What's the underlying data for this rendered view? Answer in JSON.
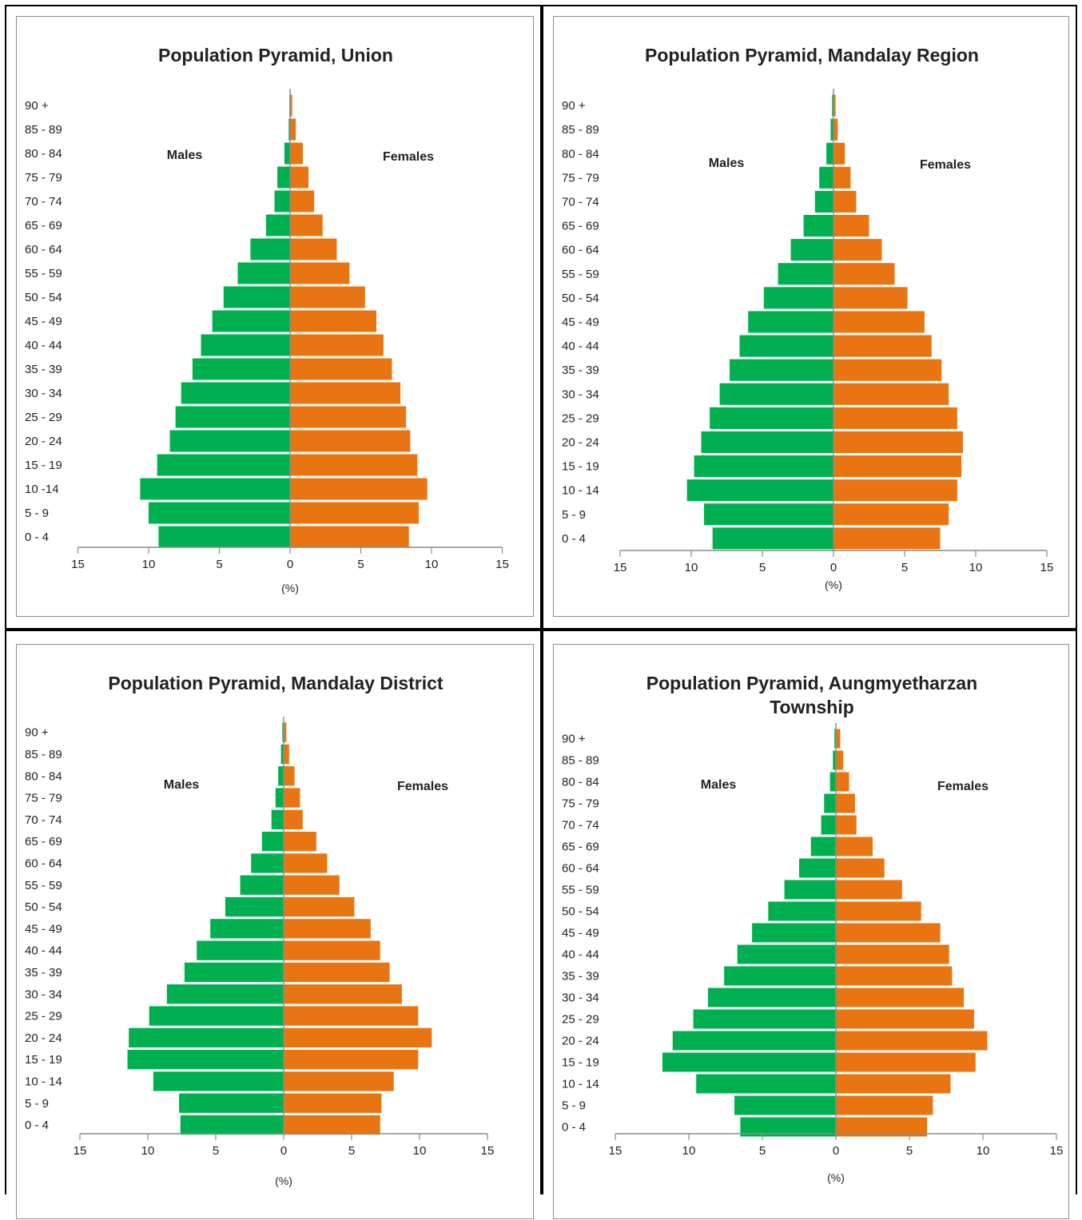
{
  "chart_data": [
    {
      "type": "bar",
      "orientation": "horizontal",
      "title": "Population Pyramid, Union",
      "title_lines": [
        "Population Pyramid, Union"
      ],
      "categories": [
        "0 -  4",
        "5 -  9",
        "10 -14",
        "15 - 19",
        "20 - 24",
        "25 - 29",
        "30 - 34",
        "35 - 39",
        "40 - 44",
        "45 - 49",
        "50 - 54",
        "55 - 59",
        "60 - 64",
        "65 - 69",
        "70 - 74",
        "75 - 79",
        "80 - 84",
        "85 - 89",
        "90 +"
      ],
      "xlabel": "(%)",
      "xlim": [
        -15,
        15
      ],
      "xticks": [
        "15",
        "10",
        "5",
        "0",
        "5",
        "10",
        "15"
      ],
      "grid": false,
      "series": [
        {
          "name": "Males",
          "color": "#00b050",
          "values": [
            9.3,
            10.0,
            10.6,
            9.4,
            8.5,
            8.1,
            7.7,
            6.9,
            6.3,
            5.5,
            4.7,
            3.7,
            2.8,
            1.7,
            1.1,
            0.9,
            0.4,
            0.1,
            0.05
          ]
        },
        {
          "name": "Females",
          "color": "#e87511",
          "values": [
            8.4,
            9.1,
            9.7,
            9.0,
            8.5,
            8.2,
            7.8,
            7.2,
            6.6,
            6.1,
            5.3,
            4.2,
            3.3,
            2.3,
            1.7,
            1.3,
            0.9,
            0.4,
            0.15
          ]
        }
      ]
    },
    {
      "type": "bar",
      "orientation": "horizontal",
      "title": "Population Pyramid, Mandalay Region",
      "title_lines": [
        "Population Pyramid, Mandalay Region"
      ],
      "categories": [
        "0 - 4",
        "5 - 9",
        "10 - 14",
        "15 - 19",
        "20 - 24",
        "25 - 29",
        "30 - 34",
        "35 - 39",
        "40 - 44",
        "45 - 49",
        "50 - 54",
        "55 - 59",
        "60 - 64",
        "65 - 69",
        "70 - 74",
        "75 - 79",
        "80 - 84",
        "85 - 89",
        "90 +"
      ],
      "xlabel": "(%)",
      "xlim": [
        -15,
        15
      ],
      "xticks": [
        "15",
        "10",
        "5",
        "0",
        "5",
        "10",
        "15"
      ],
      "grid": false,
      "series": [
        {
          "name": "Males",
          "color": "#00b050",
          "values": [
            8.5,
            9.1,
            10.3,
            9.8,
            9.3,
            8.7,
            8.0,
            7.3,
            6.6,
            6.0,
            4.9,
            3.9,
            3.0,
            2.1,
            1.3,
            1.0,
            0.5,
            0.2,
            0.1
          ]
        },
        {
          "name": "Females",
          "color": "#e87511",
          "values": [
            7.5,
            8.1,
            8.7,
            9.0,
            9.1,
            8.7,
            8.1,
            7.6,
            6.9,
            6.4,
            5.2,
            4.3,
            3.4,
            2.5,
            1.6,
            1.2,
            0.8,
            0.3,
            0.15
          ]
        }
      ]
    },
    {
      "type": "bar",
      "orientation": "horizontal",
      "title": "Population Pyramid, Mandalay District",
      "title_lines": [
        "Population Pyramid, Mandalay District"
      ],
      "categories": [
        "0 - 4",
        "5 - 9",
        "10 - 14",
        "15 - 19",
        "20 - 24",
        "25 - 29",
        "30 - 34",
        "35 - 39",
        "40 - 44",
        "45 - 49",
        "50 - 54",
        "55 - 59",
        "60 - 64",
        "65 - 69",
        "70 - 74",
        "75 - 79",
        "80 - 84",
        "85 - 89",
        "90 +"
      ],
      "xlabel": "(%)",
      "xlim": [
        -15,
        15
      ],
      "xticks": [
        "15",
        "10",
        "5",
        "0",
        "5",
        "10",
        "15"
      ],
      "grid": false,
      "series": [
        {
          "name": "Males",
          "color": "#00b050",
          "values": [
            7.6,
            7.7,
            9.6,
            11.5,
            11.4,
            9.9,
            8.6,
            7.3,
            6.4,
            5.4,
            4.3,
            3.2,
            2.4,
            1.6,
            0.9,
            0.6,
            0.4,
            0.2,
            0.1
          ]
        },
        {
          "name": "Females",
          "color": "#e87511",
          "values": [
            7.1,
            7.2,
            8.1,
            9.9,
            10.9,
            9.9,
            8.7,
            7.8,
            7.1,
            6.4,
            5.2,
            4.1,
            3.2,
            2.4,
            1.4,
            1.2,
            0.8,
            0.4,
            0.2
          ]
        }
      ]
    },
    {
      "type": "bar",
      "orientation": "horizontal",
      "title": "Population Pyramid, Aungmyetharzan Township",
      "title_lines": [
        "Population Pyramid, Aungmyetharzan",
        "Township"
      ],
      "categories": [
        "0 - 4",
        "5 - 9",
        "10 - 14",
        "15 - 19",
        "20 - 24",
        "25 - 29",
        "30 - 34",
        "35 - 39",
        "40 - 44",
        "45 - 49",
        "50 - 54",
        "55 - 59",
        "60 - 64",
        "65 - 69",
        "70 - 74",
        "75 - 79",
        "80 - 84",
        "85 - 89",
        "90 +"
      ],
      "xlabel": "(%)",
      "xlim": [
        -15,
        15
      ],
      "xticks": [
        "15",
        "10",
        "5",
        "0",
        "5",
        "10",
        "15"
      ],
      "grid": false,
      "series": [
        {
          "name": "Males",
          "color": "#00b050",
          "values": [
            6.5,
            6.9,
            9.5,
            11.8,
            11.1,
            9.7,
            8.7,
            7.6,
            6.7,
            5.7,
            4.6,
            3.5,
            2.5,
            1.7,
            1.0,
            0.8,
            0.4,
            0.2,
            0.1
          ]
        },
        {
          "name": "Females",
          "color": "#e87511",
          "values": [
            6.2,
            6.6,
            7.8,
            9.5,
            10.3,
            9.4,
            8.7,
            7.9,
            7.7,
            7.1,
            5.8,
            4.5,
            3.3,
            2.5,
            1.4,
            1.3,
            0.9,
            0.5,
            0.3
          ]
        }
      ]
    }
  ]
}
